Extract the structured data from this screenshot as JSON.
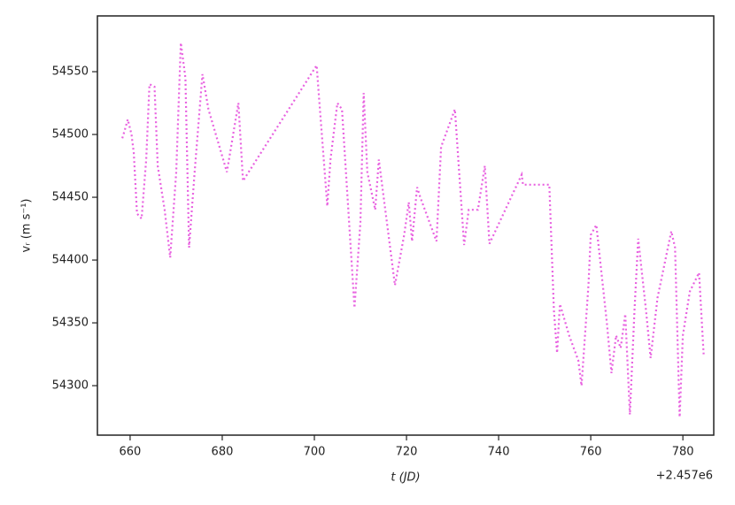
{
  "chart_data": {
    "type": "line",
    "xlabel": "t (JD)",
    "ylabel": "vᵣ (m s⁻¹)",
    "x_offset_label": "+2.457e6",
    "xlim": [
      652.9,
      786.7
    ],
    "ylim": [
      54260.6,
      54594.4
    ],
    "xticks": [
      660,
      680,
      700,
      720,
      740,
      760,
      780
    ],
    "yticks": [
      54300,
      54350,
      54400,
      54450,
      54500,
      54550
    ],
    "grid": false,
    "series": [
      {
        "color": "#e862e0",
        "x": [
          658.3,
          658.8,
          659.5,
          660.3,
          660.8,
          661.5,
          662.5,
          663.5,
          664.2,
          665.3,
          666,
          667.5,
          668.7,
          670,
          671,
          672,
          672.8,
          674,
          675.7,
          677,
          681,
          683.5,
          684.5,
          700.5,
          701,
          702.8,
          703.5,
          705,
          706,
          708.7,
          710,
          710.7,
          711.5,
          713.2,
          714,
          717.5,
          719.5,
          720.5,
          721.2,
          722.3,
          723,
          726.5,
          727.5,
          729.5,
          730.5,
          732.5,
          733.5,
          735.5,
          737,
          738,
          745,
          745.3,
          751,
          752,
          752.7,
          753.3,
          755.3,
          757.3,
          758,
          759.5,
          760,
          761.2,
          763.5,
          764.5,
          765.5,
          766.5,
          767.5,
          768.5,
          769.5,
          770.3,
          772,
          773,
          774.5,
          777.5,
          778.3,
          779.3,
          780,
          781.5,
          783.5,
          784.5
        ],
        "values": [
          54497,
          54503,
          54512,
          54500,
          54485,
          54437,
          54433,
          54480,
          54540,
          54538,
          54475,
          54440,
          54402,
          54470,
          54573,
          54545,
          54410,
          54470,
          54548,
          54520,
          54470,
          54525,
          54463,
          54555,
          54530,
          54443,
          54480,
          54525,
          54520,
          54362,
          54430,
          54533,
          54470,
          54440,
          54480,
          54380,
          54420,
          54446,
          54415,
          54458,
          54450,
          54415,
          54490,
          54510,
          54520,
          54412,
          54440,
          54440,
          54475,
          54413,
          54468,
          54460,
          54460,
          54360,
          54326,
          54365,
          54340,
          54320,
          54300,
          54380,
          54420,
          54428,
          54350,
          54310,
          54340,
          54330,
          54357,
          54277,
          54360,
          54417,
          54360,
          54322,
          54370,
          54423,
          54410,
          54275,
          54340,
          54375,
          54390,
          54325
        ]
      }
    ]
  }
}
